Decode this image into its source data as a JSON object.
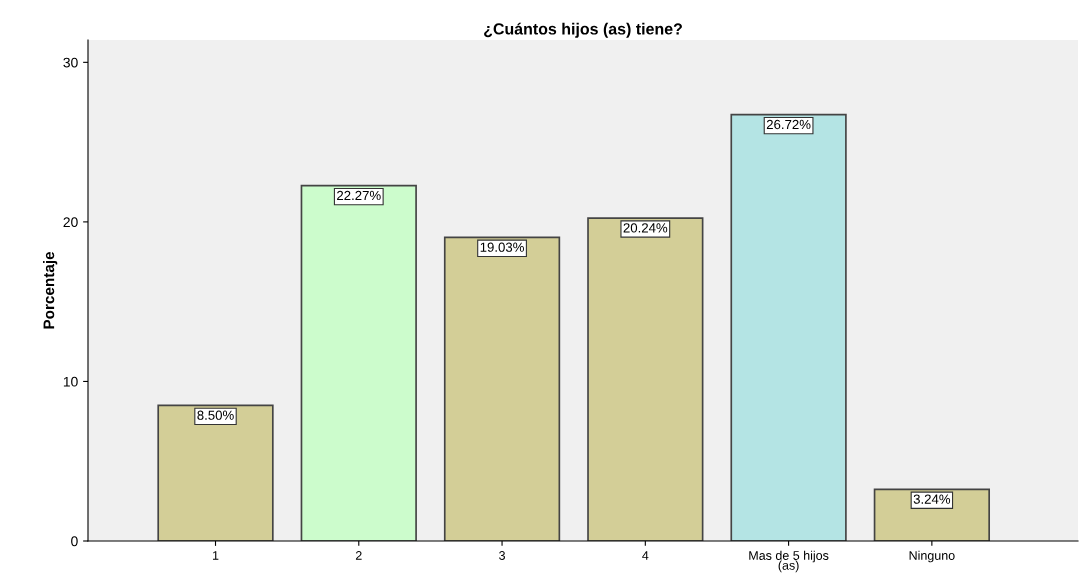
{
  "chart_data": {
    "type": "bar",
    "title": "¿Cuántos hijos (as) tiene?",
    "ylabel": "Porcentaje",
    "categories": [
      "1",
      "2",
      "3",
      "4",
      "Mas de 5 hijos\n(as)",
      "Ninguno"
    ],
    "values": [
      8.5,
      22.27,
      19.03,
      20.24,
      26.72,
      3.24
    ],
    "colors": [
      "#d3ce97",
      "#ccfccc",
      "#d3ce97",
      "#d3ce97",
      "#b4e4e4",
      "#d3ce97"
    ],
    "value_labels": [
      "8.50%",
      "22.27%",
      "19.03%",
      "20.24%",
      "26.72%",
      "3.24%"
    ],
    "ylim": [
      0,
      31.4
    ],
    "yticks": [
      0,
      10,
      20,
      30
    ],
    "grid": false,
    "legend": false
  }
}
